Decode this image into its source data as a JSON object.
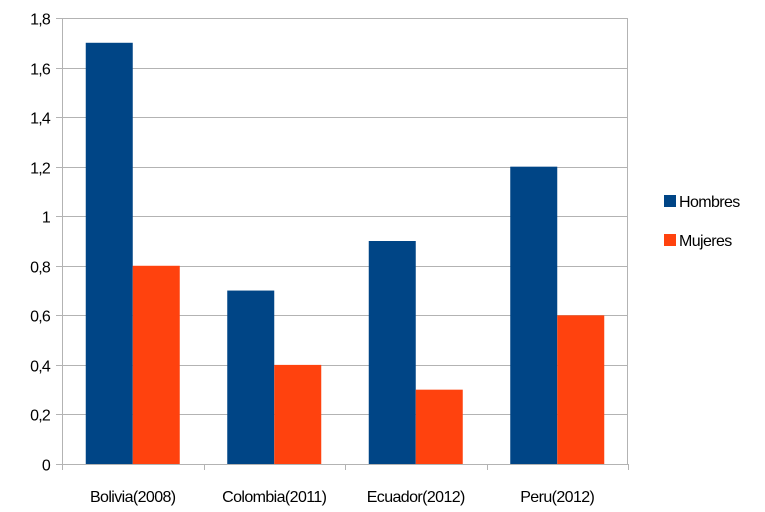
{
  "chart_data": {
    "type": "bar",
    "categories": [
      "Bolivia(2008)",
      "Colombia(2011)",
      "Ecuador(2012)",
      "Peru(2012)"
    ],
    "series": [
      {
        "name": "Hombres",
        "values": [
          1.7,
          0.7,
          0.9,
          1.2
        ],
        "color": "#004586"
      },
      {
        "name": "Mujeres",
        "values": [
          0.8,
          0.4,
          0.3,
          0.6
        ],
        "color": "#ff420e"
      }
    ],
    "y_ticks": [
      "0",
      "0,2",
      "0,4",
      "0,6",
      "0,8",
      "1",
      "1,2",
      "1,4",
      "1,6",
      "1,8"
    ],
    "ylim": [
      0,
      1.8
    ],
    "grid": true,
    "legend_position": "right"
  }
}
